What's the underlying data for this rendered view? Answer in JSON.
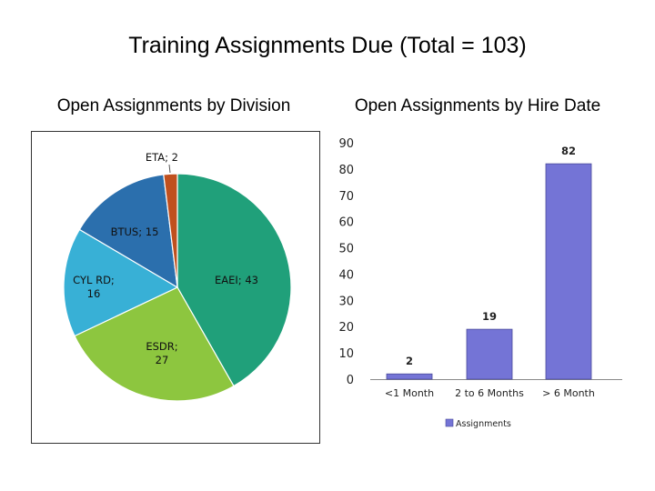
{
  "title": "Training Assignments Due (Total = 103)",
  "charts": {
    "pie_title": "Open Assignments by Division",
    "bar_title": "Open Assignments by Hire Date"
  },
  "chart_data": [
    {
      "type": "pie",
      "title": "Open Assignments by Division",
      "slices": [
        {
          "label": "EAEI",
          "value": 43,
          "display": "EAEI; 43",
          "color": "#20a07a"
        },
        {
          "label": "ESDR",
          "value": 27,
          "display": "ESDR;\n27",
          "color": "#8dc63f"
        },
        {
          "label": "CYL RD",
          "value": 16,
          "display": "CYL RD;\n16",
          "color": "#38b0d6"
        },
        {
          "label": "BTUS",
          "value": 15,
          "display": "BTUS; 15",
          "color": "#2b6fad"
        },
        {
          "label": "ETA",
          "value": 2,
          "display": "ETA; 2",
          "color": "#c0501e"
        }
      ],
      "start_angle_deg": 0,
      "direction": "clockwise"
    },
    {
      "type": "bar",
      "title": "Open Assignments by Hire Date",
      "categories": [
        "<1 Month",
        "2 to 6 Months",
        "> 6 Month"
      ],
      "series": [
        {
          "name": "Assignments",
          "values": [
            2,
            19,
            82
          ],
          "color": "#7474d6"
        }
      ],
      "ylim": [
        0,
        90
      ],
      "yticks": [
        0,
        10,
        20,
        30,
        40,
        50,
        60,
        70,
        80,
        90
      ],
      "data_labels": true,
      "legend": "bottom",
      "grid": false
    }
  ]
}
